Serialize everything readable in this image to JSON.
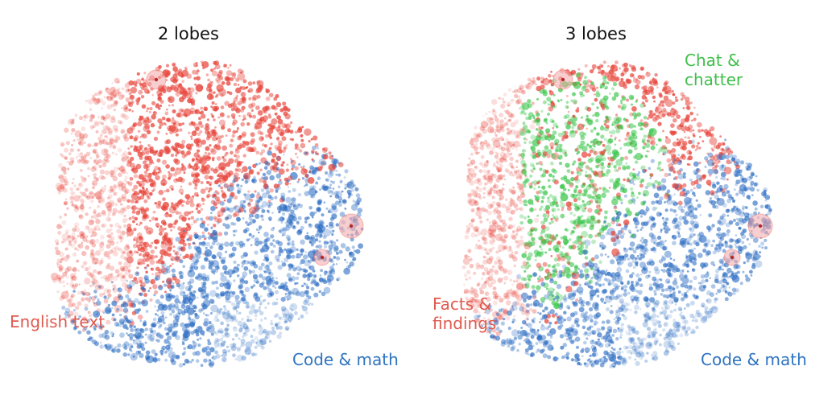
{
  "panels": [
    {
      "title": "2 lobes",
      "labels": [
        {
          "text": "English text",
          "color": "#e05a4f"
        },
        {
          "text": "Code & math",
          "color": "#2f74c0"
        }
      ]
    },
    {
      "title": "3 lobes",
      "labels": [
        {
          "text": "Chat &\nchatter",
          "color": "#3fbf4a"
        },
        {
          "text": "Facts &\nfindings",
          "color": "#e05a4f"
        },
        {
          "text": "Code & math",
          "color": "#2f74c0"
        }
      ]
    }
  ],
  "colors": {
    "red": "#e8473d",
    "blue": "#2f6fc4",
    "green": "#3cc64c",
    "pink": "#f3a6a8"
  }
}
